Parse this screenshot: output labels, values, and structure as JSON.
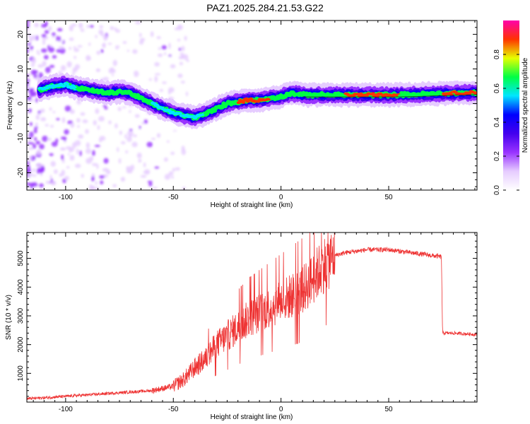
{
  "title": "PAZ1.2025.284.21.53.G22",
  "chart_data": [
    {
      "type": "heatmap",
      "title": "PAZ1.2025.284.21.53.G22",
      "xlabel": "Height of straight line (km)",
      "ylabel": "Frequency (Hz)",
      "xlim": [
        -118,
        91
      ],
      "ylim": [
        -25,
        24
      ],
      "xticks": [
        -100,
        -50,
        0,
        50
      ],
      "xtick_labels": [
        "-100",
        "-50",
        "0",
        "50"
      ],
      "yticks": [
        -20,
        -10,
        0,
        10,
        20
      ],
      "ytick_labels": [
        "-20",
        "-10",
        "0",
        "10",
        "20"
      ],
      "ridge_frequency_hz": {
        "x": [
          -118,
          -112,
          -106,
          -100,
          -95,
          -90,
          -85,
          -80,
          -75,
          -70,
          -65,
          -60,
          -55,
          -50,
          -45,
          -40,
          -35,
          -30,
          -25,
          -20,
          -15,
          -10,
          -5,
          0,
          5,
          10,
          20,
          30,
          40,
          50,
          60,
          70,
          80,
          91
        ],
        "y": [
          3,
          4,
          5,
          5.5,
          4.5,
          4,
          3.5,
          3,
          3.5,
          3,
          1.5,
          0,
          -1.5,
          -2.5,
          -3.5,
          -4,
          -3,
          -1.5,
          0,
          0.5,
          1,
          1,
          1.5,
          2,
          3,
          2.5,
          2.5,
          2.5,
          2.5,
          2.5,
          2.6,
          2.8,
          3,
          3.2
        ]
      },
      "colorbar": {
        "label": "Normalized spectral amplitude",
        "range": [
          0,
          1
        ],
        "ticks": [
          0,
          0.2,
          0.4,
          0.6,
          0.8
        ],
        "tick_labels": [
          "0.0",
          "0.2",
          "0.4",
          "0.6",
          "0.8"
        ],
        "colors": [
          "#ffffff",
          "#e6ccff",
          "#9933ff",
          "#4400ee",
          "#0000ff",
          "#00e6ff",
          "#00ff44",
          "#e6ff00",
          "#ff3300",
          "#ff00aa"
        ]
      }
    },
    {
      "type": "line",
      "xlabel": "Height of straight line (km)",
      "ylabel": "SNR (10 * v/v)",
      "xlim": [
        -118,
        91
      ],
      "ylim": [
        0,
        5900
      ],
      "xticks": [
        -100,
        -50,
        0,
        50
      ],
      "xtick_labels": [
        "-100",
        "-50",
        "0",
        "50"
      ],
      "yticks": [
        1000,
        2000,
        3000,
        4000,
        5000
      ],
      "ytick_labels": [
        "1000",
        "2000",
        "3000",
        "4000",
        "5000"
      ],
      "color": "#ee3333",
      "trend": {
        "x": [
          -118,
          -110,
          -100,
          -90,
          -80,
          -70,
          -60,
          -50,
          -45,
          -40,
          -35,
          -30,
          -25,
          -20,
          -15,
          -10,
          -5,
          0,
          5,
          10,
          15,
          20,
          25,
          30,
          35,
          40,
          50,
          60,
          70,
          74.5,
          75,
          80,
          91
        ],
        "y": [
          120,
          150,
          200,
          250,
          300,
          350,
          400,
          550,
          800,
          1200,
          1500,
          2000,
          2300,
          2600,
          2900,
          3100,
          3300,
          3500,
          3700,
          3900,
          4300,
          4800,
          5100,
          5200,
          5250,
          5300,
          5300,
          5200,
          5100,
          5050,
          2400,
          2400,
          2350
        ]
      }
    }
  ]
}
